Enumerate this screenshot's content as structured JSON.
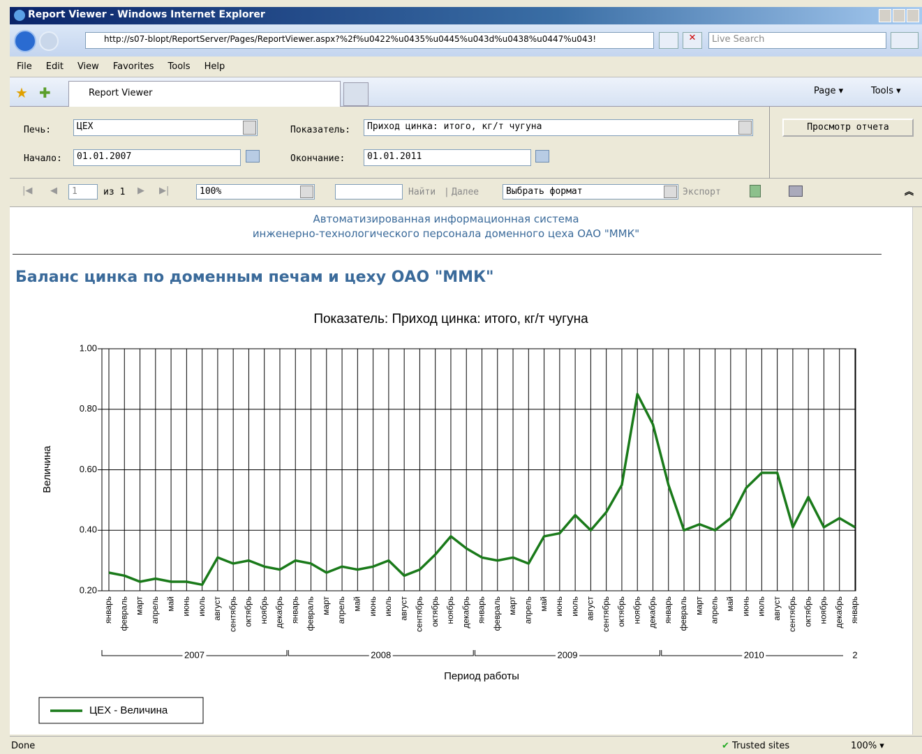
{
  "window": {
    "title": "Report Viewer - Windows Internet Explorer"
  },
  "address": {
    "url": "http://s07-blopt/ReportServer/Pages/ReportViewer.aspx?%2f%u0422%u0435%u0445%u043d%u0438%u0447%u043!",
    "search": "Live Search"
  },
  "menu": [
    "File",
    "Edit",
    "View",
    "Favorites",
    "Tools",
    "Help"
  ],
  "tab": {
    "title": "Report Viewer"
  },
  "command_bar": [
    "Page",
    "Tools"
  ],
  "parameters": {
    "furnace_label": "Печь:",
    "furnace": "ЦЕХ",
    "indicator_label": "Показатель:",
    "indicator": "Приход цинка: итого, кг/т чугуна",
    "start_label": "Начало:",
    "start": "01.01.2007",
    "end_label": "Окончание:",
    "end": "01.01.2011",
    "view_button": "Просмотр отчета"
  },
  "report_toolbar": {
    "page": "1",
    "of": "из 1",
    "zoom": "100%",
    "find": "Найти",
    "separator": "|",
    "next": "Далее",
    "format": "Выбрать формат",
    "export": "Экспорт"
  },
  "report": {
    "header": [
      "Автоматизированная информационная система",
      "инженерно-технологического персонала доменного цеха ОАО \"ММК\""
    ],
    "title": "Баланс цинка по доменным печам и цеху ОАО \"ММК\""
  },
  "chart_data": {
    "type": "line",
    "title": "Показатель: Приход цинка: итого, кг/т чугуна",
    "x_label": "Период работы",
    "y_label": "Величина",
    "categories": [
      "январь",
      "февраль",
      "март",
      "апрель",
      "май",
      "июнь",
      "июль",
      "август",
      "сентябрь",
      "октябрь",
      "ноябрь",
      "декабрь",
      "январь",
      "февраль",
      "март",
      "апрель",
      "май",
      "июнь",
      "июль",
      "август",
      "сентябрь",
      "октябрь",
      "ноябрь",
      "декабрь",
      "январь",
      "февраль",
      "март",
      "апрель",
      "май",
      "июнь",
      "июль",
      "август",
      "сентябрь",
      "октябрь",
      "ноябрь",
      "декабрь",
      "январь",
      "февраль",
      "март",
      "апрель",
      "май",
      "июнь",
      "июль",
      "август",
      "сентябрь",
      "октябрь",
      "ноябрь",
      "декабрь",
      "январь"
    ],
    "x_groups": [
      "2007",
      "2008",
      "2009",
      "2010",
      "2"
    ],
    "series": [
      {
        "name": "ЦЕХ - Величина",
        "color": "#1a7a1a",
        "values": [
          0.26,
          0.25,
          0.23,
          0.24,
          0.23,
          0.23,
          0.22,
          0.31,
          0.29,
          0.3,
          0.28,
          0.27,
          0.3,
          0.29,
          0.26,
          0.28,
          0.27,
          0.28,
          0.3,
          0.25,
          0.27,
          0.32,
          0.38,
          0.34,
          0.31,
          0.3,
          0.31,
          0.29,
          0.38,
          0.39,
          0.45,
          0.4,
          0.46,
          0.55,
          0.85,
          0.75,
          0.55,
          0.4,
          0.42,
          0.4,
          0.44,
          0.54,
          0.59,
          0.59,
          0.41,
          0.51,
          0.41,
          0.44,
          0.41
        ]
      }
    ],
    "ylim": [
      0.2,
      1.0
    ],
    "yticks": [
      {
        "value": 0.2,
        "label": "0.20"
      },
      {
        "value": 0.4,
        "label": "0.40"
      },
      {
        "value": 0.6,
        "label": "0.60"
      },
      {
        "value": 0.8,
        "label": "0.80"
      },
      {
        "value": 1.0,
        "label": "1.00"
      }
    ],
    "grid": true
  },
  "status": {
    "text": "Done",
    "zone": "Trusted sites",
    "zoom": "100%"
  }
}
